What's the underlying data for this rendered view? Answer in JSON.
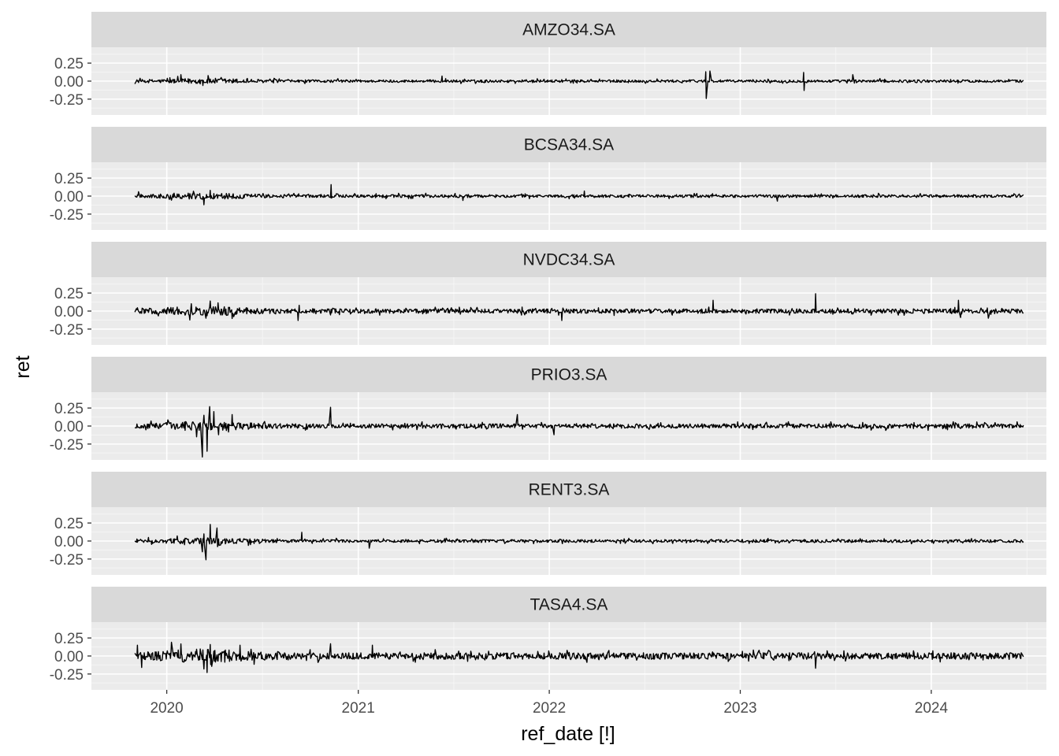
{
  "chart_data": {
    "type": "line",
    "xlabel": "ref_date [!]",
    "ylabel": "ret",
    "x_range": [
      "2019-11-01",
      "2024-06-25"
    ],
    "xlim": [
      "2019-08-10",
      "2024-08-08"
    ],
    "ylim": [
      -0.47,
      0.47
    ],
    "yticks": [
      -0.25,
      0.0,
      0.25
    ],
    "ytick_labels": [
      "-0.25",
      "0.00",
      "0.25"
    ],
    "xticks": [
      "2020-01-01",
      "2021-01-01",
      "2022-01-01",
      "2023-01-01",
      "2024-01-01"
    ],
    "xtick_labels": [
      "2020",
      "2021",
      "2022",
      "2023",
      "2024"
    ],
    "grid": true,
    "facets": [
      {
        "name": "AMZO34.SA",
        "series_noise": 0.018,
        "spikes": [
          {
            "date": "2020-01-28",
            "ret": 0.09
          },
          {
            "date": "2021-06-10",
            "ret": 0.07
          },
          {
            "date": "2022-10-27",
            "ret": 0.13
          },
          {
            "date": "2022-10-28",
            "ret": -0.24
          },
          {
            "date": "2022-11-04",
            "ret": 0.14
          },
          {
            "date": "2023-05-02",
            "ret": 0.12
          },
          {
            "date": "2023-05-03",
            "ret": -0.13
          },
          {
            "date": "2023-08-04",
            "ret": 0.09
          }
        ]
      },
      {
        "name": "BCSA34.SA",
        "series_noise": 0.02,
        "spikes": [
          {
            "date": "2019-11-08",
            "ret": 0.06
          },
          {
            "date": "2020-03-12",
            "ret": -0.12
          },
          {
            "date": "2020-03-24",
            "ret": 0.08
          },
          {
            "date": "2020-11-10",
            "ret": 0.16
          },
          {
            "date": "2021-07-20",
            "ret": -0.06
          },
          {
            "date": "2022-03-09",
            "ret": 0.07
          },
          {
            "date": "2023-03-13",
            "ret": -0.07
          }
        ]
      },
      {
        "name": "NVDC34.SA",
        "series_noise": 0.03,
        "spikes": [
          {
            "date": "2020-03-16",
            "ret": -0.1
          },
          {
            "date": "2020-03-24",
            "ret": 0.14
          },
          {
            "date": "2020-09-08",
            "ret": -0.13
          },
          {
            "date": "2020-09-10",
            "ret": 0.08
          },
          {
            "date": "2022-01-25",
            "ret": -0.13
          },
          {
            "date": "2022-11-10",
            "ret": 0.15
          },
          {
            "date": "2023-05-25",
            "ret": 0.24
          },
          {
            "date": "2024-02-22",
            "ret": 0.15
          },
          {
            "date": "2024-02-26",
            "ret": -0.09
          },
          {
            "date": "2024-04-19",
            "ret": -0.1
          }
        ]
      },
      {
        "name": "PRIO3.SA",
        "series_noise": 0.03,
        "spikes": [
          {
            "date": "2020-02-27",
            "ret": -0.15
          },
          {
            "date": "2020-03-09",
            "ret": -0.43
          },
          {
            "date": "2020-03-12",
            "ret": 0.15
          },
          {
            "date": "2020-03-18",
            "ret": -0.35
          },
          {
            "date": "2020-03-23",
            "ret": 0.27
          },
          {
            "date": "2020-03-31",
            "ret": 0.2
          },
          {
            "date": "2020-04-09",
            "ret": -0.12
          },
          {
            "date": "2020-05-05",
            "ret": 0.16
          },
          {
            "date": "2020-11-09",
            "ret": 0.26
          },
          {
            "date": "2021-11-01",
            "ret": 0.16
          },
          {
            "date": "2022-01-10",
            "ret": -0.12
          }
        ]
      },
      {
        "name": "RENT3.SA",
        "series_noise": 0.02,
        "spikes": [
          {
            "date": "2020-03-09",
            "ret": -0.15
          },
          {
            "date": "2020-03-12",
            "ret": 0.1
          },
          {
            "date": "2020-03-16",
            "ret": -0.26
          },
          {
            "date": "2020-03-24",
            "ret": 0.23
          },
          {
            "date": "2020-04-06",
            "ret": 0.18
          },
          {
            "date": "2020-09-15",
            "ret": 0.12
          },
          {
            "date": "2021-01-22",
            "ret": -0.1
          }
        ]
      },
      {
        "name": "TASA4.SA",
        "series_noise": 0.045,
        "spikes": [
          {
            "date": "2019-11-06",
            "ret": 0.15
          },
          {
            "date": "2019-11-14",
            "ret": -0.16
          },
          {
            "date": "2020-01-10",
            "ret": 0.19
          },
          {
            "date": "2020-03-12",
            "ret": -0.18
          },
          {
            "date": "2020-03-18",
            "ret": -0.23
          },
          {
            "date": "2020-03-24",
            "ret": 0.16
          },
          {
            "date": "2020-05-20",
            "ret": 0.15
          },
          {
            "date": "2020-11-09",
            "ret": 0.17
          },
          {
            "date": "2021-01-28",
            "ret": 0.15
          },
          {
            "date": "2023-05-25",
            "ret": -0.17
          }
        ]
      }
    ]
  }
}
